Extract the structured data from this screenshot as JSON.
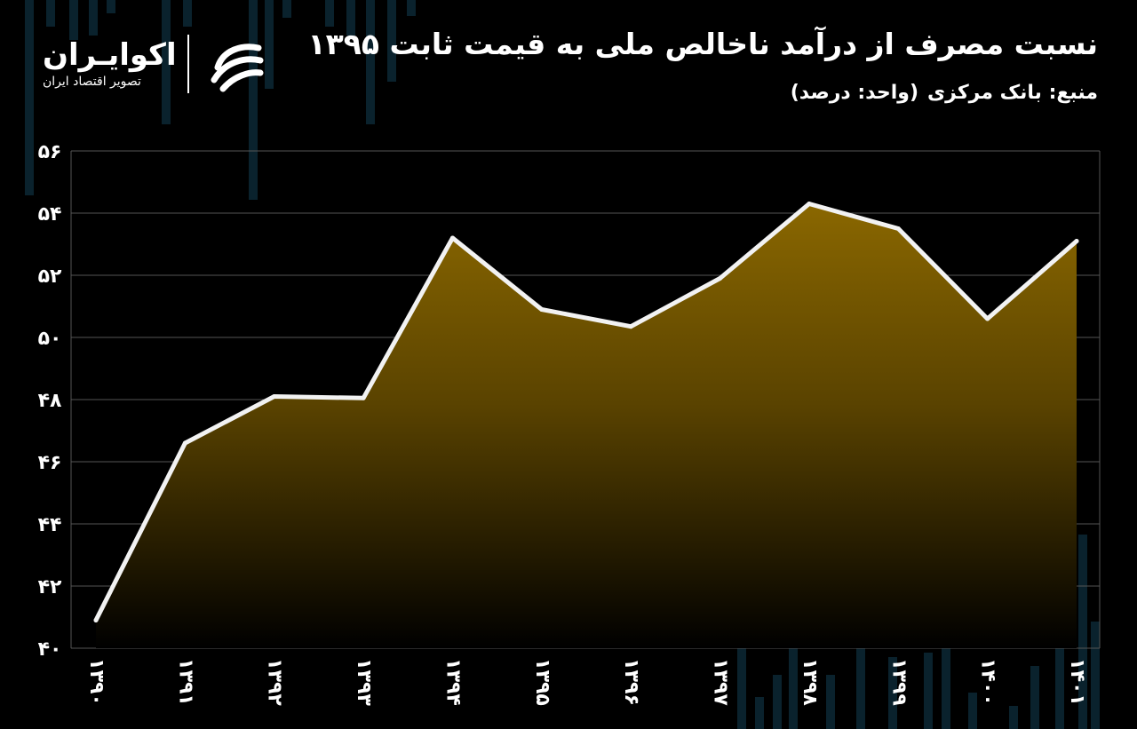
{
  "header": {
    "title": "نسبت مصرف از درآمد ناخالص ملی به قیمت ثابت ۱۳۹۵",
    "source": "منبع: بانک مرکزی",
    "unit": "(واحد: درصد)"
  },
  "logo": {
    "name": "اکوایـران",
    "tagline": "تصویر اقتصاد ایران",
    "icon": "ecoiran-swirl-logo"
  },
  "colors": {
    "background": "#000000",
    "line": "#f2f2f2",
    "fill_top": "#8a6700",
    "fill_bottom": "#000000",
    "grid": "#555555",
    "text": "#ffffff"
  },
  "chart_data": {
    "type": "area",
    "x": [
      "۱۳۹۰",
      "۱۳۹۱",
      "۱۳۹۲",
      "۱۳۹۳",
      "۱۳۹۴",
      "۱۳۹۵",
      "۱۳۹۶",
      "۱۳۹۷",
      "۱۳۹۸",
      "۱۳۹۹",
      "۱۴۰۰",
      "۱۴۰۱"
    ],
    "y_values": [
      40.9,
      46.6,
      48.1,
      48.05,
      53.2,
      50.9,
      50.35,
      51.9,
      54.3,
      53.5,
      50.6,
      53.1
    ],
    "ylim": [
      40,
      56
    ],
    "yticks": [
      40,
      42,
      44,
      46,
      48,
      50,
      52,
      54,
      56
    ],
    "ytick_labels": [
      "۴۰",
      "۴۲",
      "۴۴",
      "۴۶",
      "۴۸",
      "۵۰",
      "۵۲",
      "۵۴",
      "۵۶"
    ],
    "grid": true,
    "legend": "none"
  }
}
